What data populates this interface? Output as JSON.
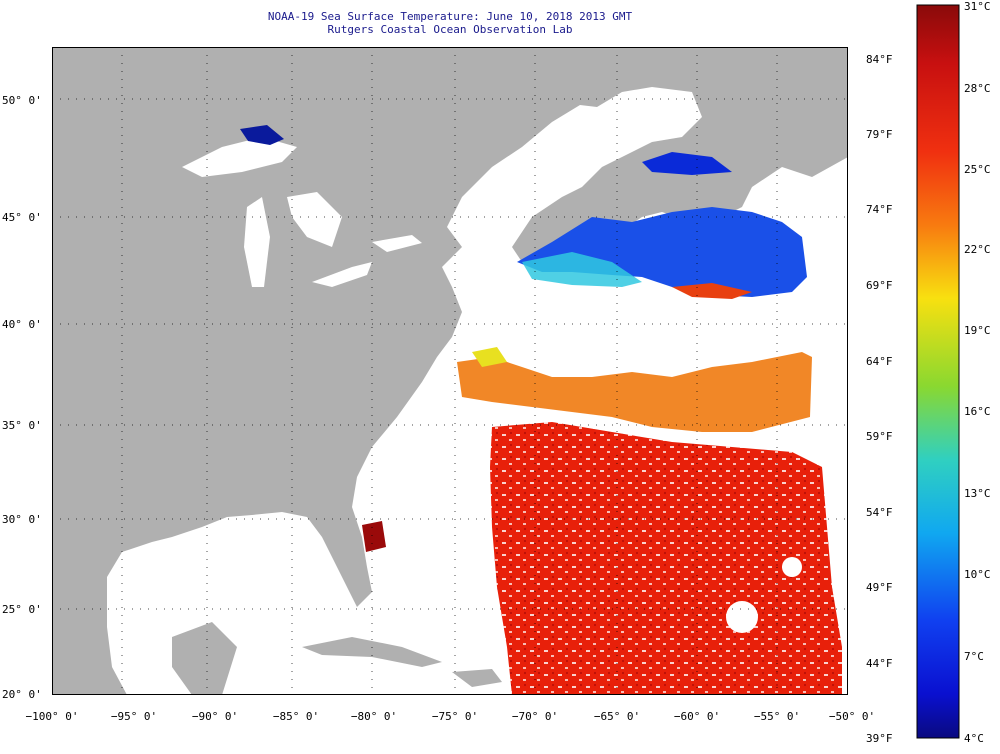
{
  "header": {
    "title_line1": "NOAA-19 Sea Surface Temperature:  June 10, 2018 2013 GMT",
    "title_line2": "Rutgers Coastal Ocean Observation Lab"
  },
  "axes": {
    "lat_labels": [
      "50° 0'",
      "45° 0'",
      "40° 0'",
      "35° 0'",
      "30° 0'",
      "25° 0'",
      "20° 0'"
    ],
    "lon_labels": [
      "−100° 0'",
      "−95° 0'",
      "−90° 0'",
      "−85° 0'",
      "−80° 0'",
      "−75° 0'",
      "−70° 0'",
      "−65° 0'",
      "−60° 0'",
      "−55° 0'",
      "−50° 0'"
    ]
  },
  "colorbar": {
    "fahrenheit": [
      "84°F",
      "79°F",
      "74°F",
      "69°F",
      "64°F",
      "59°F",
      "54°F",
      "49°F",
      "44°F",
      "39°F"
    ],
    "celsius": [
      "31°C",
      "28°C",
      "25°C",
      "22°C",
      "19°C",
      "16°C",
      "13°C",
      "10°C",
      "7°C",
      "4°C"
    ]
  },
  "colors": {
    "land": "#b0b0b0",
    "ocean_nodata": "#ffffff",
    "warm": "#e8200a",
    "hot": "#9a0a0a",
    "orange": "#f07a10",
    "cold": "#0a2ad8"
  }
}
